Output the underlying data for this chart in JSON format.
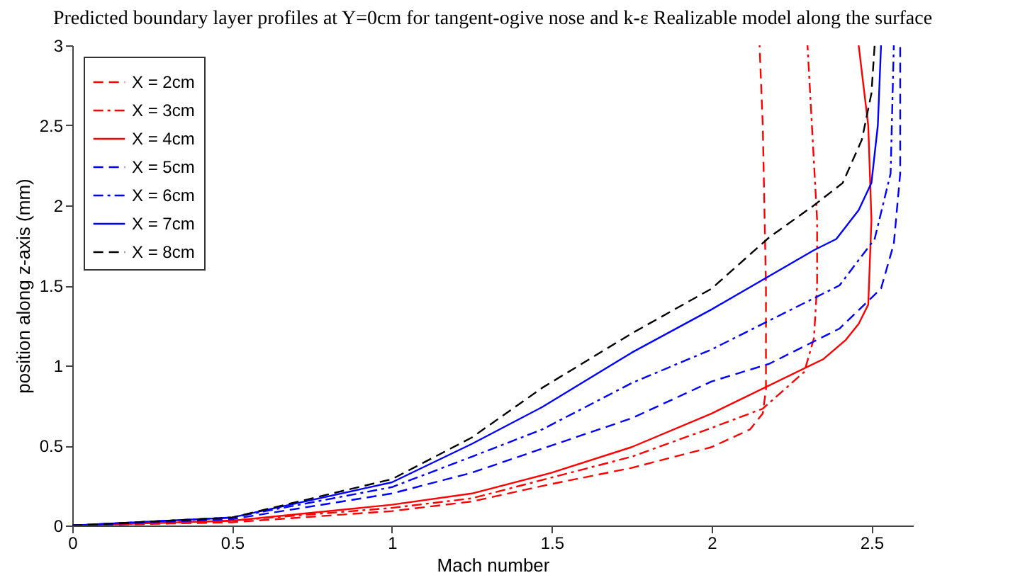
{
  "chart_data": {
    "type": "line",
    "title": "Predicted boundary layer profiles at Y=0cm for tangent-ogive nose and k-ε Realizable model along the surface",
    "xlabel": "Mach number",
    "ylabel": "position along z-axis (mm)",
    "xlim": [
      0,
      2.63
    ],
    "ylim": [
      0,
      3
    ],
    "xticks": [
      0,
      0.5,
      1,
      1.5,
      2,
      2.5
    ],
    "yticks": [
      0,
      0.5,
      1,
      1.5,
      2,
      2.5,
      3
    ],
    "grid": false,
    "legend": "top left",
    "marker": "none",
    "series": [
      {
        "name": "X = 2cm",
        "color": "#ff0000",
        "line_style": "dashed",
        "x": [
          0,
          0.5,
          1,
          1.25,
          1.5,
          1.75,
          2,
          2.12,
          2.16,
          2.17,
          2.17,
          2.16,
          2.15
        ],
        "values": [
          0,
          0.02,
          0.09,
          0.15,
          0.26,
          0.36,
          0.49,
          0.6,
          0.7,
          0.85,
          1.5,
          2.5,
          3
        ]
      },
      {
        "name": "X = 3cm",
        "color": "#ff0000",
        "line_style": "dashdot",
        "x": [
          0,
          0.5,
          1,
          1.25,
          1.5,
          1.75,
          2,
          2.16,
          2.29,
          2.32,
          2.33,
          2.33,
          2.3
        ],
        "values": [
          0,
          0.03,
          0.11,
          0.17,
          0.3,
          0.43,
          0.61,
          0.73,
          0.96,
          1.17,
          1.5,
          1.91,
          3
        ]
      },
      {
        "name": "X = 4cm",
        "color": "#ff0000",
        "line_style": "solid",
        "x": [
          0,
          0.5,
          1,
          1.25,
          1.5,
          1.75,
          2,
          2.35,
          2.42,
          2.46,
          2.49,
          2.5,
          2.49,
          2.46
        ],
        "values": [
          0,
          0.03,
          0.13,
          0.2,
          0.33,
          0.49,
          0.7,
          1.04,
          1.16,
          1.26,
          1.38,
          1.91,
          2.5,
          3
        ]
      },
      {
        "name": "X = 5cm",
        "color": "#0000ff",
        "line_style": "dashed",
        "x": [
          0,
          0.5,
          1,
          1.25,
          1.47,
          1.75,
          2,
          2.18,
          2.4,
          2.53,
          2.57,
          2.59,
          2.59
        ],
        "values": [
          0,
          0.04,
          0.2,
          0.33,
          0.48,
          0.67,
          0.9,
          1.01,
          1.23,
          1.48,
          1.76,
          2.2,
          3
        ]
      },
      {
        "name": "X = 6cm",
        "color": "#0000ff",
        "line_style": "dashdot",
        "x": [
          0,
          0.5,
          1,
          1.25,
          1.47,
          1.75,
          2,
          2.4,
          2.51,
          2.56,
          2.57
        ],
        "values": [
          0,
          0.05,
          0.24,
          0.43,
          0.6,
          0.89,
          1.1,
          1.5,
          1.79,
          2.2,
          3
        ]
      },
      {
        "name": "X = 7cm",
        "color": "#0000ff",
        "line_style": "solid",
        "x": [
          0,
          0.5,
          1,
          1.25,
          1.47,
          1.75,
          2,
          2.32,
          2.39,
          2.46,
          2.5,
          2.52,
          2.53
        ],
        "values": [
          0,
          0.05,
          0.27,
          0.51,
          0.74,
          1.08,
          1.35,
          1.72,
          1.79,
          1.97,
          2.14,
          2.5,
          3
        ]
      },
      {
        "name": "X = 8cm",
        "color": "#000000",
        "line_style": "dashed",
        "x": [
          0,
          0.5,
          1,
          1.25,
          1.47,
          1.75,
          2,
          2.18,
          2.32,
          2.41,
          2.47,
          2.5,
          2.51
        ],
        "values": [
          0,
          0.05,
          0.29,
          0.55,
          0.86,
          1.2,
          1.48,
          1.8,
          2.0,
          2.14,
          2.41,
          2.7,
          3
        ]
      }
    ]
  }
}
